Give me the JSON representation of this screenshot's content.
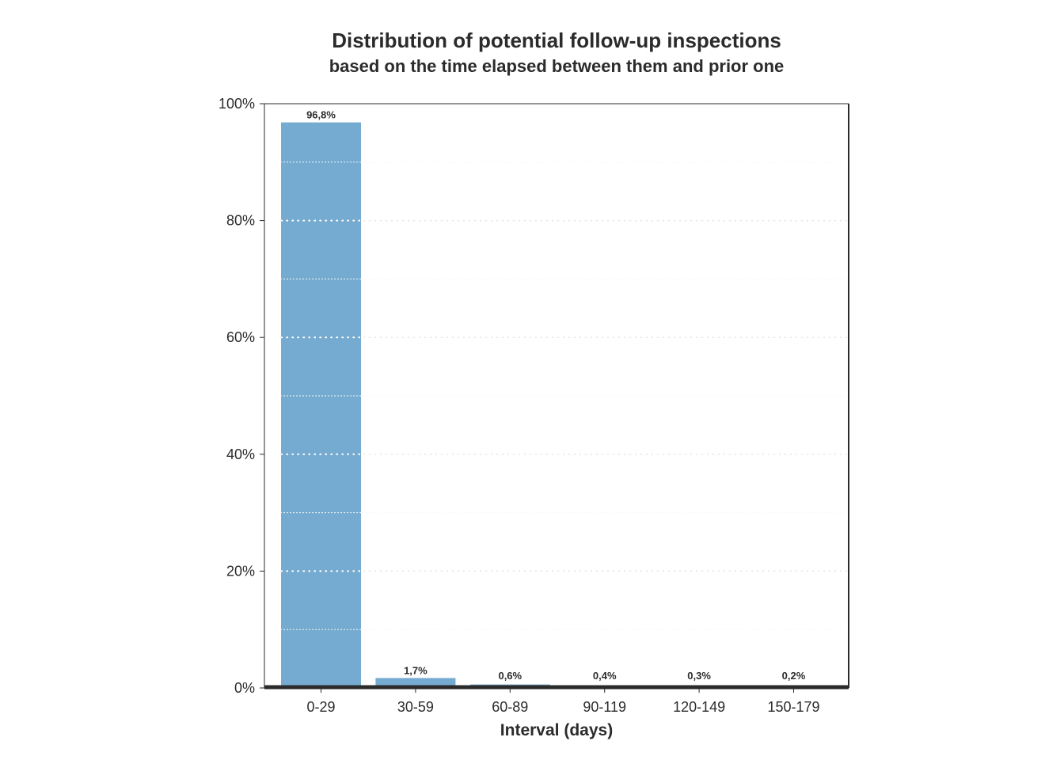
{
  "chart_data": {
    "type": "bar",
    "title": "Distribution of potential follow-up inspections",
    "subtitle": "based on the time elapsed between them and prior one",
    "xlabel": "Interval (days)",
    "ylabel": "",
    "categories": [
      "0-29",
      "30-59",
      "60-89",
      "90-119",
      "120-149",
      "150-179"
    ],
    "values": [
      96.8,
      1.7,
      0.6,
      0.4,
      0.3,
      0.2
    ],
    "data_labels": [
      "96,8%",
      "1,7%",
      "0,6%",
      "0,4%",
      "0,3%",
      "0,2%"
    ],
    "ylim": [
      0,
      100
    ],
    "y_ticks": [
      0,
      20,
      40,
      60,
      80,
      100
    ],
    "y_tick_labels": [
      "0%",
      "20%",
      "40%",
      "60%",
      "80%",
      "100%"
    ],
    "grid": true,
    "legend": "none",
    "colors": {
      "bar": "#75abd0",
      "text": "#2b2b2b",
      "axis": "#2b2b2b",
      "grid": "#ffffff"
    }
  }
}
